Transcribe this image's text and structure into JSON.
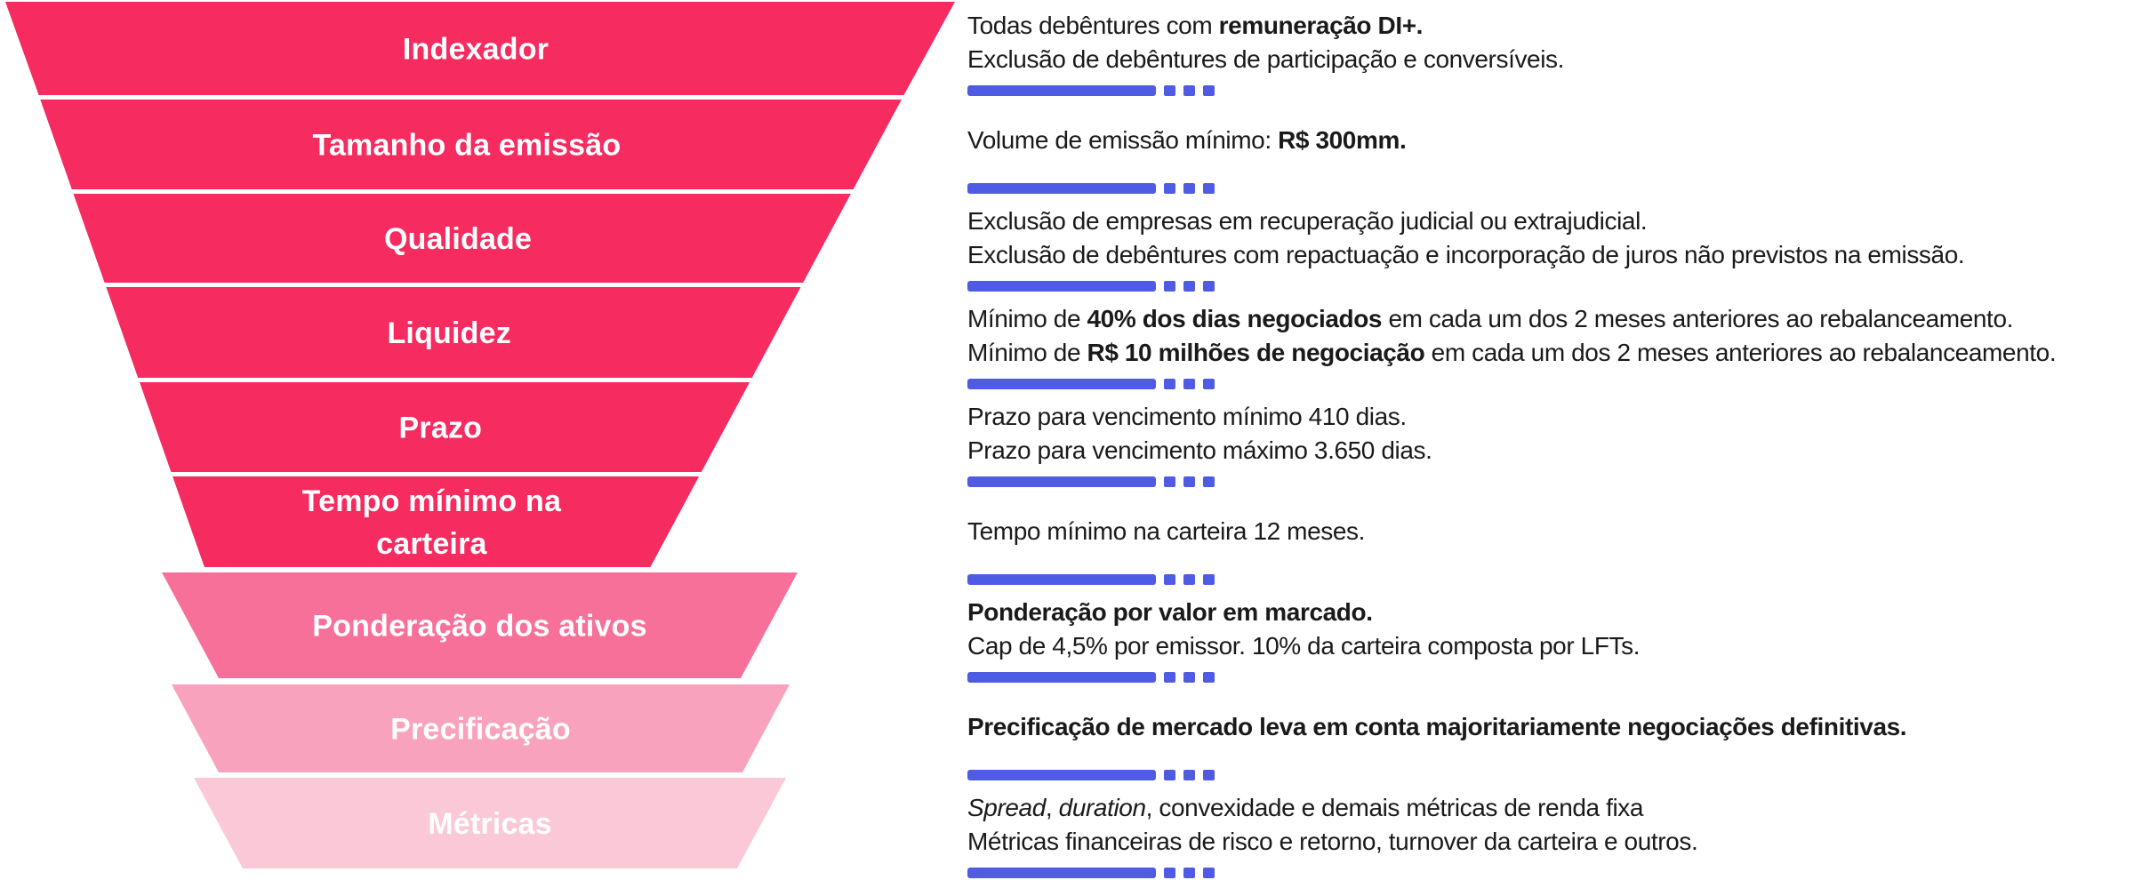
{
  "theme": {
    "divider_blue": "#4F5BE3",
    "text_color": "#1A1A1A",
    "stage_pink_strong": "#F62B5F",
    "stage_pink_medium": "#F7709A",
    "stage_pink_light": "#F8A2BD",
    "stage_pink_pale": "#FAC8D7"
  },
  "funnel": {
    "stages": [
      {
        "label": "Indexador",
        "lines": [
          "Indexador"
        ],
        "color": "#F62B5F"
      },
      {
        "label": "Tamanho da emissão",
        "lines": [
          "Tamanho da emissão"
        ],
        "color": "#F62B5F"
      },
      {
        "label": "Qualidade",
        "lines": [
          "Qualidade"
        ],
        "color": "#F62B5F"
      },
      {
        "label": "Liquidez",
        "lines": [
          "Liquidez"
        ],
        "color": "#F62B5F"
      },
      {
        "label": "Prazo",
        "lines": [
          "Prazo"
        ],
        "color": "#F62B5F"
      },
      {
        "label": "Tempo mínimo na carteira",
        "lines": [
          "Tempo mínimo na",
          "carteira"
        ],
        "color": "#F62B5F"
      },
      {
        "label": "Ponderação dos ativos",
        "lines": [
          "Ponderação dos ativos"
        ],
        "color": "#F7709A"
      },
      {
        "label": "Precificação",
        "lines": [
          "Precificação"
        ],
        "color": "#F8A2BD"
      },
      {
        "label": "Métricas",
        "lines": [
          "Métricas"
        ],
        "color": "#FAC8D7"
      }
    ]
  },
  "divider": {
    "dash_count": 3
  },
  "details": [
    {
      "lines": [
        [
          {
            "t": "Todas debêntures com ",
            "s": ""
          },
          {
            "t": "remuneração DI+.",
            "s": "b"
          }
        ],
        [
          {
            "t": "Exclusão de debêntures de participação e conversíveis.",
            "s": ""
          }
        ]
      ]
    },
    {
      "lines": [
        [
          {
            "t": "Volume de emissão mínimo: ",
            "s": ""
          },
          {
            "t": "R$ 300mm.",
            "s": "b"
          }
        ]
      ]
    },
    {
      "lines": [
        [
          {
            "t": "Exclusão de empresas em recuperação judicial ou extrajudicial.",
            "s": ""
          }
        ],
        [
          {
            "t": "Exclusão de debêntures com repactuação e incorporação de juros não previstos na emissão.",
            "s": ""
          }
        ]
      ]
    },
    {
      "lines": [
        [
          {
            "t": "Mínimo de ",
            "s": ""
          },
          {
            "t": "40% dos dias negociados",
            "s": "b"
          },
          {
            "t": " em cada um dos 2 meses anteriores ao rebalanceamento.",
            "s": ""
          }
        ],
        [
          {
            "t": "Mínimo de ",
            "s": ""
          },
          {
            "t": "R$ 10 milhões de negociação",
            "s": "b"
          },
          {
            "t": " em cada um dos 2 meses anteriores ao rebalanceamento.",
            "s": ""
          }
        ]
      ]
    },
    {
      "lines": [
        [
          {
            "t": "Prazo para vencimento mínimo 410 dias.",
            "s": ""
          }
        ],
        [
          {
            "t": "Prazo para vencimento máximo 3.650 dias.",
            "s": ""
          }
        ]
      ]
    },
    {
      "lines": [
        [
          {
            "t": "Tempo mínimo na carteira 12 meses.",
            "s": ""
          }
        ]
      ]
    },
    {
      "lines": [
        [
          {
            "t": "Ponderação por valor em marcado.",
            "s": "b"
          }
        ],
        [
          {
            "t": "Cap de 4,5% por emissor. 10% da carteira composta por LFTs.",
            "s": ""
          }
        ]
      ]
    },
    {
      "lines": [
        [
          {
            "t": "Precificação de mercado leva em conta majoritariamente negociações definitivas.",
            "s": "b"
          }
        ]
      ]
    },
    {
      "lines": [
        [
          {
            "t": "Spread",
            "s": "i"
          },
          {
            "t": ", ",
            "s": ""
          },
          {
            "t": "duration",
            "s": "i"
          },
          {
            "t": ", convexidade e demais métricas de renda fixa",
            "s": ""
          }
        ],
        [
          {
            "t": "Métricas financeiras de risco e retorno, turnover da carteira e outros.",
            "s": ""
          }
        ]
      ]
    }
  ]
}
